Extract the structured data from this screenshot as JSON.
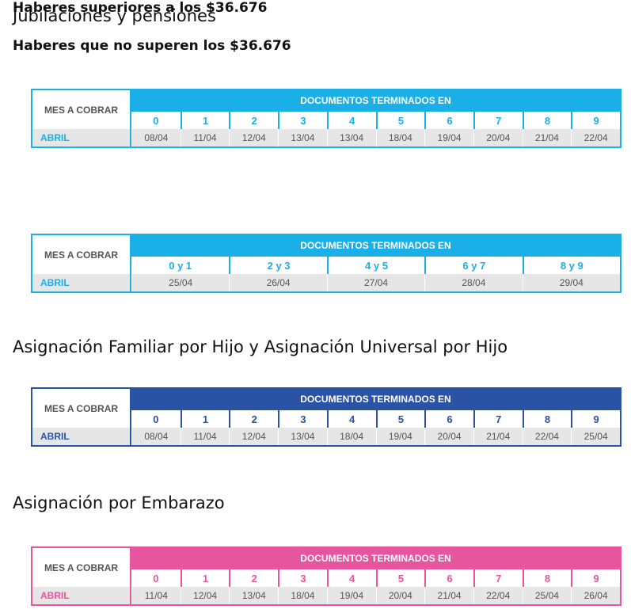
{
  "sections": [
    {
      "title": "Jubilaciones y pensiones",
      "color": "#1aafe6",
      "tables": [
        {
          "subtitle": [
            "Haberes que ",
            "no superen",
            " los $36.676"
          ],
          "month_header": "MES A COBRAR",
          "group_header": "DOCUMENTOS TERMINADOS EN",
          "month": "ABRIL",
          "endings": [
            "0",
            "1",
            "2",
            "3",
            "4",
            "5",
            "6",
            "7",
            "8",
            "9"
          ],
          "dates": [
            "08/04",
            "11/04",
            "12/04",
            "13/04",
            "13/04",
            "18/04",
            "19/04",
            "20/04",
            "21/04",
            "22/04"
          ]
        },
        {
          "subtitle": [
            "Haberes superiores a los $36.676"
          ],
          "month_header": "MES A COBRAR",
          "group_header": "DOCUMENTOS TERMINADOS EN",
          "month": "ABRIL",
          "endings": [
            "0 y 1",
            "2 y 3",
            "4 y 5",
            "6 y 7",
            "8 y 9"
          ],
          "dates": [
            "25/04",
            "26/04",
            "27/04",
            "28/04",
            "29/04"
          ]
        }
      ]
    },
    {
      "title": "Asignación Familiar por Hijo y Asignación Universal por Hijo",
      "color": "#2a53a6",
      "tables": [
        {
          "month_header": "MES A COBRAR",
          "group_header": "DOCUMENTOS TERMINADOS EN",
          "month": "ABRIL",
          "endings": [
            "0",
            "1",
            "2",
            "3",
            "4",
            "5",
            "6",
            "7",
            "8",
            "9"
          ],
          "dates": [
            "08/04",
            "11/04",
            "12/04",
            "13/04",
            "18/04",
            "19/04",
            "20/04",
            "21/04",
            "22/04",
            "25/04"
          ]
        }
      ]
    },
    {
      "title": "Asignación por Embarazo",
      "color": "#e8559f",
      "tables": [
        {
          "month_header": "MES A COBRAR",
          "group_header": "DOCUMENTOS TERMINADOS EN",
          "month": "ABRIL",
          "endings": [
            "0",
            "1",
            "2",
            "3",
            "4",
            "5",
            "6",
            "7",
            "8",
            "9"
          ],
          "dates": [
            "11/04",
            "12/04",
            "13/04",
            "18/04",
            "19/04",
            "20/04",
            "21/04",
            "22/04",
            "25/04",
            "26/04"
          ]
        }
      ]
    }
  ]
}
